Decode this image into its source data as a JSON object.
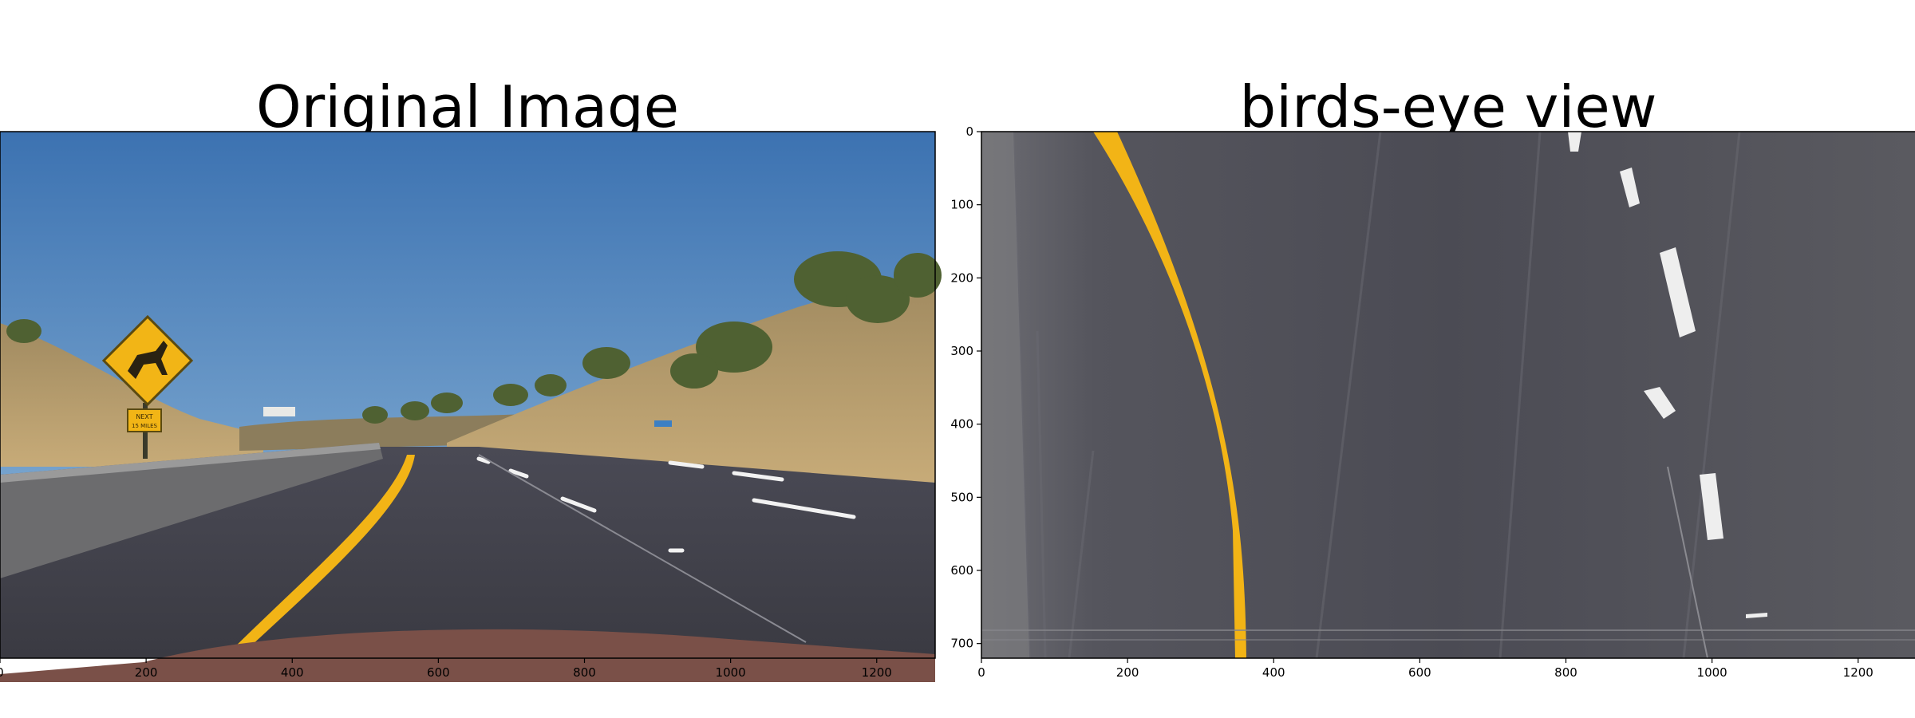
{
  "panels": {
    "left": {
      "title": "Original Image",
      "x_ticks": [
        "0",
        "200",
        "400",
        "600",
        "800",
        "1000",
        "1200"
      ]
    },
    "right": {
      "title": "birds-eye view",
      "x_ticks": [
        "0",
        "200",
        "400",
        "600",
        "800",
        "1000",
        "1200"
      ],
      "y_ticks": [
        "0",
        "100",
        "200",
        "300",
        "400",
        "500",
        "600",
        "700"
      ]
    }
  },
  "sign": {
    "text_line1": "NEXT",
    "text_line2": "15 MILES"
  },
  "colors": {
    "sky_top": "#3f76b4",
    "sky_bottom": "#86b1d6",
    "hill": "#b39a6b",
    "road": "#3d3d47",
    "lane_yellow": "#f2b416",
    "lane_white": "#f4f4f4",
    "sign_yellow": "#f2b516"
  }
}
